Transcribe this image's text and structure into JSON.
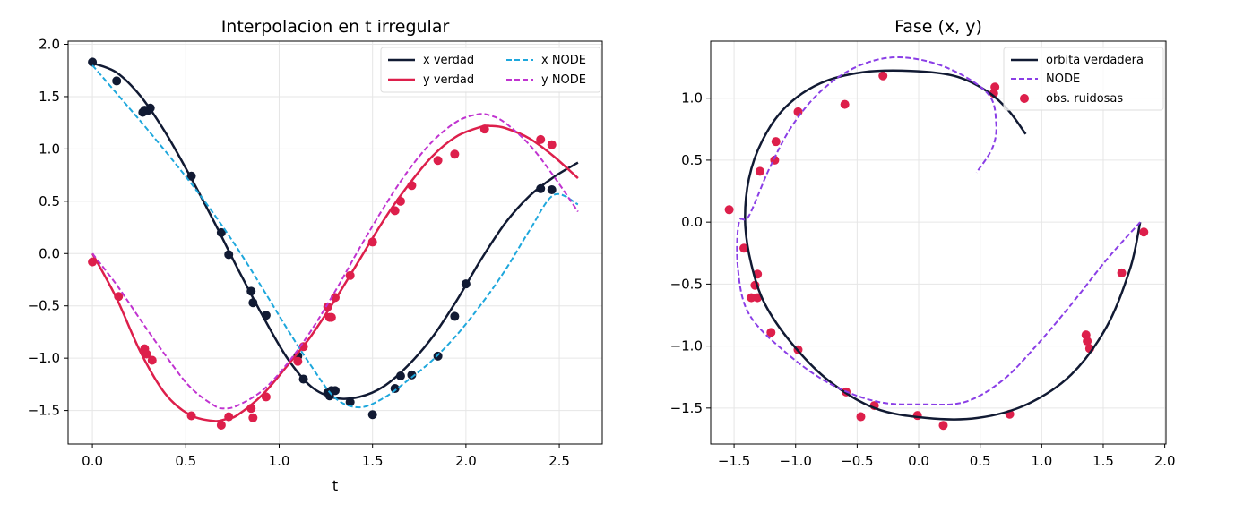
{
  "colors": {
    "x_true": "#111a33",
    "y_true": "#dd1f4b",
    "x_node": "#1ea7dc",
    "y_node": "#c033d0",
    "phase_true": "#111a33",
    "phase_node": "#8a3ee6",
    "phase_obs": "#dd1f4b",
    "grid": "#e6e6e6"
  },
  "chart_data": [
    {
      "type": "line",
      "title": "Interpolacion en t irregular",
      "xlabel": "t",
      "ylabel": "",
      "xlim": [
        -0.13,
        2.73
      ],
      "ylim": [
        -1.82,
        2.03
      ],
      "xticks": [
        0.0,
        0.5,
        1.0,
        1.5,
        2.0,
        2.5
      ],
      "xtick_labels": [
        "0.0",
        "0.5",
        "1.0",
        "1.5",
        "2.0",
        "2.5"
      ],
      "yticks": [
        -1.5,
        -1.0,
        -0.5,
        0.0,
        0.5,
        1.0,
        1.5,
        2.0
      ],
      "ytick_labels": [
        "−1.5",
        "−1.0",
        "−0.5",
        "0.0",
        "0.5",
        "1.0",
        "1.5",
        "2.0"
      ],
      "grid": true,
      "legend_position": "top-right",
      "series": [
        {
          "name": "x verdad",
          "style": "solid",
          "color_key": "x_true",
          "x": [
            0.0,
            0.13,
            0.26,
            0.39,
            0.52,
            0.65,
            0.78,
            0.91,
            1.04,
            1.17,
            1.3,
            1.43,
            1.56,
            1.69,
            1.82,
            1.95,
            2.08,
            2.21,
            2.34,
            2.47,
            2.6
          ],
          "y": [
            1.82,
            1.73,
            1.5,
            1.16,
            0.75,
            0.31,
            -0.15,
            -0.59,
            -0.99,
            -1.27,
            -1.38,
            -1.37,
            -1.27,
            -1.07,
            -0.8,
            -0.45,
            -0.06,
            0.29,
            0.55,
            0.73,
            0.87
          ]
        },
        {
          "name": "y verdad",
          "style": "solid",
          "color_key": "y_true",
          "x": [
            0.0,
            0.13,
            0.26,
            0.39,
            0.52,
            0.65,
            0.72,
            0.78,
            0.91,
            1.04,
            1.17,
            1.3,
            1.43,
            1.56,
            1.69,
            1.82,
            1.95,
            2.08,
            2.13,
            2.21,
            2.34,
            2.47,
            2.6
          ],
          "y": [
            0.0,
            -0.43,
            -0.95,
            -1.34,
            -1.54,
            -1.6,
            -1.58,
            -1.54,
            -1.35,
            -1.08,
            -0.79,
            -0.44,
            -0.06,
            0.32,
            0.65,
            0.93,
            1.12,
            1.21,
            1.22,
            1.2,
            1.1,
            0.93,
            0.72
          ]
        },
        {
          "name": "x NODE",
          "style": "dashed",
          "color_key": "x_node",
          "x": [
            0.0,
            0.13,
            0.26,
            0.39,
            0.52,
            0.65,
            0.78,
            0.91,
            1.04,
            1.17,
            1.3,
            1.43,
            1.56,
            1.69,
            1.82,
            1.95,
            2.08,
            2.21,
            2.34,
            2.47,
            2.6
          ],
          "y": [
            1.8,
            1.53,
            1.26,
            0.98,
            0.69,
            0.38,
            0.04,
            -0.33,
            -0.71,
            -1.07,
            -1.38,
            -1.47,
            -1.38,
            -1.21,
            -1.02,
            -0.78,
            -0.49,
            -0.16,
            0.22,
            0.56,
            0.47
          ]
        },
        {
          "name": "y NODE",
          "style": "dashed",
          "color_key": "y_node",
          "x": [
            0.0,
            0.13,
            0.26,
            0.39,
            0.52,
            0.65,
            0.71,
            0.78,
            0.91,
            1.04,
            1.17,
            1.3,
            1.43,
            1.56,
            1.69,
            1.82,
            1.95,
            2.06,
            2.13,
            2.21,
            2.34,
            2.47,
            2.6
          ],
          "y": [
            0.0,
            -0.3,
            -0.64,
            -0.97,
            -1.27,
            -1.45,
            -1.48,
            -1.45,
            -1.31,
            -1.06,
            -0.74,
            -0.36,
            0.05,
            0.44,
            0.79,
            1.07,
            1.26,
            1.33,
            1.32,
            1.25,
            1.04,
            0.74,
            0.4
          ]
        },
        {
          "name": "",
          "style": "markers",
          "color_key": "x_true",
          "x": [
            0.0,
            0.13,
            0.27,
            0.28,
            0.3,
            0.31,
            0.53,
            0.69,
            0.73,
            0.85,
            0.86,
            0.93,
            1.1,
            1.13,
            1.26,
            1.27,
            1.28,
            1.3,
            1.38,
            1.5,
            1.62,
            1.65,
            1.71,
            1.85,
            1.94,
            2.0,
            2.4,
            2.46
          ],
          "y": [
            1.83,
            1.65,
            1.35,
            1.37,
            1.37,
            1.39,
            0.74,
            0.2,
            -0.01,
            -0.36,
            -0.47,
            -0.59,
            -0.98,
            -1.2,
            -1.33,
            -1.36,
            -1.31,
            -1.31,
            -1.42,
            -1.54,
            -1.29,
            -1.17,
            -1.16,
            -0.98,
            -0.6,
            -0.29,
            0.62,
            0.61
          ]
        },
        {
          "name": "",
          "style": "markers",
          "color_key": "y_true",
          "x": [
            0.0,
            0.14,
            0.28,
            0.29,
            0.32,
            0.53,
            0.69,
            0.73,
            0.85,
            0.86,
            0.93,
            1.1,
            1.13,
            1.26,
            1.27,
            1.28,
            1.3,
            1.38,
            1.5,
            1.62,
            1.65,
            1.71,
            1.85,
            1.94,
            2.1,
            2.4,
            2.46
          ],
          "y": [
            -0.08,
            -0.41,
            -0.91,
            -0.96,
            -1.02,
            -1.55,
            -1.64,
            -1.56,
            -1.48,
            -1.57,
            -1.37,
            -1.03,
            -0.89,
            -0.51,
            -0.61,
            -0.61,
            -0.42,
            -0.21,
            0.11,
            0.41,
            0.5,
            0.65,
            0.89,
            0.95,
            1.19,
            1.09,
            1.04
          ]
        }
      ]
    },
    {
      "type": "line",
      "title": "Fase (x, y)",
      "xlabel": "",
      "ylabel": "",
      "xlim": [
        -1.69,
        2.01
      ],
      "ylim": [
        -1.79,
        1.46
      ],
      "xticks": [
        -1.5,
        -1.0,
        -0.5,
        0.0,
        0.5,
        1.0,
        1.5,
        2.0
      ],
      "xtick_labels": [
        "−1.5",
        "−1.0",
        "−0.5",
        "0.0",
        "0.5",
        "1.0",
        "1.5",
        "2.0"
      ],
      "yticks": [
        -1.5,
        -1.0,
        -0.5,
        0.0,
        0.5,
        1.0
      ],
      "ytick_labels": [
        "−1.5",
        "−1.0",
        "−0.5",
        "0.0",
        "0.5",
        "1.0"
      ],
      "grid": true,
      "legend_position": "top-right",
      "series": [
        {
          "name": "orbita verdadera",
          "style": "solid",
          "color_key": "phase_true",
          "x": [
            1.8,
            1.72,
            1.53,
            1.24,
            0.88,
            0.48,
            0.06,
            -0.36,
            -0.73,
            -1.03,
            -1.25,
            -1.36,
            -1.41,
            -1.38,
            -1.27,
            -1.08,
            -0.8,
            -0.45,
            -0.06,
            0.29,
            0.55,
            0.73,
            0.87
          ],
          "y": [
            0.0,
            -0.37,
            -0.84,
            -1.23,
            -1.47,
            -1.58,
            -1.58,
            -1.5,
            -1.28,
            -0.98,
            -0.66,
            -0.34,
            0.0,
            0.35,
            0.66,
            0.93,
            1.12,
            1.21,
            1.22,
            1.18,
            1.06,
            0.9,
            0.71
          ]
        },
        {
          "name": "NODE",
          "style": "dashed",
          "color_key": "phase_node",
          "x": [
            1.8,
            1.53,
            1.26,
            0.98,
            0.69,
            0.38,
            0.04,
            -0.33,
            -0.71,
            -1.07,
            -1.38,
            -1.47,
            -1.46,
            -1.38,
            -1.21,
            -1.02,
            -0.78,
            -0.49,
            -0.16,
            0.22,
            0.56,
            0.63,
            0.6,
            0.47
          ],
          "y": [
            0.0,
            -0.3,
            -0.64,
            -0.97,
            -1.27,
            -1.45,
            -1.47,
            -1.45,
            -1.31,
            -1.06,
            -0.74,
            -0.36,
            0.0,
            0.05,
            0.44,
            0.79,
            1.07,
            1.26,
            1.33,
            1.25,
            1.04,
            0.8,
            0.6,
            0.4
          ]
        },
        {
          "name": "obs. ruidosas",
          "style": "markers",
          "color_key": "phase_obs",
          "x": [
            1.83,
            1.65,
            1.39,
            1.37,
            1.36,
            0.74,
            0.2,
            -0.01,
            -0.36,
            -0.59,
            -0.47,
            -0.98,
            -1.2,
            -1.31,
            -1.33,
            -1.36,
            -1.31,
            -1.42,
            -1.54,
            -1.29,
            -1.17,
            -1.16,
            -0.98,
            -0.6,
            -0.29,
            0.62,
            0.61
          ],
          "y": [
            -0.08,
            -0.41,
            -1.02,
            -0.96,
            -0.91,
            -1.55,
            -1.64,
            -1.56,
            -1.48,
            -1.37,
            -1.57,
            -1.03,
            -0.89,
            -0.61,
            -0.51,
            -0.61,
            -0.42,
            -0.21,
            0.1,
            0.41,
            0.5,
            0.65,
            0.89,
            0.95,
            1.18,
            1.09,
            1.04
          ]
        }
      ]
    }
  ]
}
